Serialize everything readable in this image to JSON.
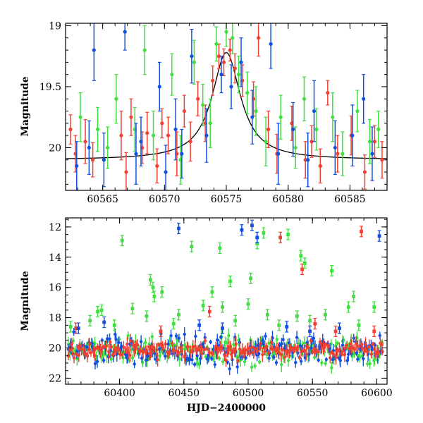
{
  "colors": {
    "red": "#f04030",
    "green": "#40e040",
    "blue": "#1050e0",
    "model": "#000000"
  },
  "chart_data": [
    {
      "type": "scatter",
      "panel": "top",
      "ylabel": "Magnitude",
      "xlabel": "",
      "xlim": [
        60562,
        60588
      ],
      "ylim": [
        20.35,
        18.98
      ],
      "y_inverted": true,
      "xticks": [
        60565,
        60570,
        60575,
        60580,
        60585
      ],
      "xtick_labels": [
        "60565",
        "60570",
        "60575",
        "60580",
        "60585"
      ],
      "yticks": [
        19,
        19.5,
        20
      ],
      "ytick_labels": [
        "19",
        "19.5",
        "20"
      ],
      "grid": false,
      "model_curve": {
        "type": "lorentzian-peak",
        "baseline": 20.1,
        "peak_x": 60575.0,
        "peak_y": 19.22,
        "half_width_days": 1.4,
        "color": "model"
      },
      "series": [
        {
          "color": "red",
          "points": [
            [
              60562.4,
              19.85,
              0.12
            ],
            [
              60562.8,
              20.05,
              0.15
            ],
            [
              60563.6,
              19.95,
              0.18
            ],
            [
              60564.2,
              20.1,
              0.14
            ],
            [
              60566.5,
              19.9,
              0.2
            ],
            [
              60566.9,
              20.2,
              0.16
            ],
            [
              60567.3,
              19.75,
              0.15
            ],
            [
              60568.2,
              20.0,
              0.13
            ],
            [
              60568.6,
              19.88,
              0.17
            ],
            [
              60569.4,
              20.15,
              0.14
            ],
            [
              60569.8,
              19.8,
              0.12
            ],
            [
              60570.3,
              19.9,
              0.15
            ],
            [
              60571.0,
              20.05,
              0.18
            ],
            [
              60571.6,
              19.7,
              0.13
            ],
            [
              60572.1,
              19.95,
              0.16
            ],
            [
              60572.7,
              19.6,
              0.14
            ],
            [
              60573.3,
              19.8,
              0.15
            ],
            [
              60573.9,
              19.45,
              0.12
            ],
            [
              60574.4,
              19.25,
              0.1
            ],
            [
              60574.8,
              19.3,
              0.11
            ],
            [
              60575.3,
              19.2,
              0.09
            ],
            [
              60575.7,
              19.35,
              0.12
            ],
            [
              60576.3,
              19.45,
              0.13
            ],
            [
              60577.2,
              19.6,
              0.14
            ],
            [
              60577.6,
              19.1,
              0.15
            ],
            [
              60578.4,
              19.85,
              0.15
            ],
            [
              60579.1,
              20.05,
              0.16
            ],
            [
              60580.3,
              19.8,
              0.14
            ],
            [
              60581.4,
              20.1,
              0.15
            ],
            [
              60581.9,
              19.95,
              0.13
            ],
            [
              60582.6,
              20.15,
              0.14
            ],
            [
              60583.2,
              19.55,
              0.1
            ],
            [
              60584.0,
              20.05,
              0.15
            ],
            [
              60585.1,
              19.9,
              0.16
            ],
            [
              60586.2,
              20.2,
              0.14
            ],
            [
              60587.0,
              19.95,
              0.13
            ],
            [
              60587.6,
              20.1,
              0.15
            ]
          ]
        },
        {
          "color": "green",
          "points": [
            [
              60563.2,
              19.75,
              0.2
            ],
            [
              60564.6,
              19.85,
              0.18
            ],
            [
              60565.4,
              20.0,
              0.17
            ],
            [
              60566.1,
              19.6,
              0.2
            ],
            [
              60567.6,
              19.85,
              0.18
            ],
            [
              60568.4,
              19.2,
              0.2
            ],
            [
              60569.1,
              19.9,
              0.2
            ],
            [
              60570.6,
              19.4,
              0.17
            ],
            [
              60571.3,
              20.1,
              0.2
            ],
            [
              60572.4,
              19.3,
              0.18
            ],
            [
              60573.1,
              19.65,
              0.17
            ],
            [
              60573.7,
              19.8,
              0.2
            ],
            [
              60574.2,
              19.15,
              0.14
            ],
            [
              60575.0,
              19.05,
              0.12
            ],
            [
              60575.5,
              19.1,
              0.13
            ],
            [
              60576.0,
              19.4,
              0.15
            ],
            [
              60576.7,
              19.55,
              0.17
            ],
            [
              60577.4,
              19.7,
              0.2
            ],
            [
              60578.2,
              19.95,
              0.2
            ],
            [
              60579.4,
              19.75,
              0.18
            ],
            [
              60580.6,
              20.0,
              0.17
            ],
            [
              60581.3,
              19.6,
              0.18
            ],
            [
              60582.3,
              19.85,
              0.17
            ],
            [
              60583.6,
              19.75,
              0.2
            ],
            [
              60584.4,
              20.05,
              0.18
            ],
            [
              60585.6,
              19.7,
              0.17
            ],
            [
              60586.6,
              19.95,
              0.18
            ],
            [
              60587.3,
              19.85,
              0.15
            ]
          ]
        },
        {
          "color": "blue",
          "points": [
            [
              60562.9,
              20.15,
              0.2
            ],
            [
              60563.9,
              20.0,
              0.22
            ],
            [
              60564.3,
              19.2,
              0.25
            ],
            [
              60565.1,
              20.1,
              0.22
            ],
            [
              60566.8,
              19.05,
              0.15
            ],
            [
              60567.7,
              20.05,
              0.25
            ],
            [
              60568.1,
              19.95,
              0.2
            ],
            [
              60569.6,
              19.5,
              0.2
            ],
            [
              60570.1,
              20.2,
              0.22
            ],
            [
              60570.9,
              19.85,
              0.25
            ],
            [
              60571.4,
              20.05,
              0.2
            ],
            [
              60572.2,
              19.25,
              0.22
            ],
            [
              60573.4,
              19.9,
              0.22
            ],
            [
              60574.6,
              19.4,
              0.15
            ],
            [
              60575.4,
              19.5,
              0.18
            ],
            [
              60576.2,
              19.3,
              0.2
            ],
            [
              60577.1,
              19.75,
              0.22
            ],
            [
              60578.6,
              19.15,
              0.2
            ],
            [
              60579.2,
              20.05,
              0.25
            ],
            [
              60580.4,
              19.85,
              0.22
            ],
            [
              60581.6,
              20.1,
              0.22
            ],
            [
              60582.1,
              19.7,
              0.25
            ],
            [
              60583.8,
              20.0,
              0.22
            ],
            [
              60585.2,
              19.9,
              0.25
            ],
            [
              60586.1,
              19.6,
              0.2
            ],
            [
              60586.8,
              20.05,
              0.22
            ]
          ]
        }
      ]
    },
    {
      "type": "scatter",
      "panel": "bottom",
      "ylabel": "Magnitude",
      "xlabel": "HJD−2400000",
      "xlim": [
        60358,
        60608
      ],
      "ylim": [
        22.4,
        11.4
      ],
      "y_inverted": true,
      "xticks": [
        60400,
        60450,
        60500,
        60550,
        60600
      ],
      "xtick_labels": [
        "60400",
        "60450",
        "60500",
        "60550",
        "60600"
      ],
      "yticks": [
        12,
        14,
        16,
        18,
        20,
        22
      ],
      "ytick_labels": [
        "12",
        "14",
        "16",
        "18",
        "20",
        "22"
      ],
      "grid": false,
      "baseline_bands": {
        "x_start": 60360,
        "x_end": 60605,
        "step_days": 1.2,
        "red": {
          "center": 20.1,
          "scatter": 0.45
        },
        "green": {
          "center": 20.2,
          "scatter": 0.7
        },
        "blue": {
          "center": 20.1,
          "scatter": 0.8
        }
      },
      "series": [
        {
          "color": "red",
          "points": [
            [
              60366,
              18.7
            ],
            [
              60432,
              18.9
            ],
            [
              60470,
              17.6
            ],
            [
              60525,
              12.7
            ],
            [
              60542,
              14.8
            ],
            [
              60552,
              18.4
            ],
            [
              60568,
              18.9
            ],
            [
              60588,
              12.3
            ],
            [
              60598,
              18.9
            ]
          ]
        },
        {
          "color": "green",
          "points": [
            [
              60362,
              18.6
            ],
            [
              60377,
              18.2
            ],
            [
              60383,
              17.6
            ],
            [
              60386,
              17.5
            ],
            [
              60396,
              18.5
            ],
            [
              60402,
              12.9
            ],
            [
              60410,
              17.4
            ],
            [
              60421,
              17.9
            ],
            [
              60424,
              15.5
            ],
            [
              60426,
              16.0
            ],
            [
              60427,
              16.6
            ],
            [
              60433,
              16.3
            ],
            [
              60442,
              18.4
            ],
            [
              60446,
              17.8
            ],
            [
              60456,
              13.3
            ],
            [
              60465,
              17.2
            ],
            [
              60472,
              16.3
            ],
            [
              60478,
              13.4
            ],
            [
              60480,
              17.3
            ],
            [
              60486,
              15.6
            ],
            [
              60490,
              18.2
            ],
            [
              60500,
              17.1
            ],
            [
              60502,
              15.4
            ],
            [
              60507,
              13.1
            ],
            [
              60512,
              12.4
            ],
            [
              60515,
              17.8
            ],
            [
              60524,
              18.5
            ],
            [
              60531,
              12.5
            ],
            [
              60538,
              17.9
            ],
            [
              60541,
              13.9
            ],
            [
              60544,
              14.4
            ],
            [
              60548,
              18.2
            ],
            [
              60560,
              17.8
            ],
            [
              60565,
              14.9
            ],
            [
              60578,
              17.3
            ],
            [
              60582,
              16.6
            ],
            [
              60586,
              18.5
            ],
            [
              60598,
              17.3
            ]
          ]
        },
        {
          "color": "blue",
          "points": [
            [
              60368,
              18.7
            ],
            [
              60388,
              18.3
            ],
            [
              60446,
              12.1
            ],
            [
              60462,
              18.5
            ],
            [
              60480,
              18.7
            ],
            [
              60495,
              12.2
            ],
            [
              60503,
              11.9
            ],
            [
              60507,
              12.7
            ],
            [
              60530,
              18.6
            ],
            [
              60548,
              18.9
            ],
            [
              60571,
              18.7
            ],
            [
              60602,
              12.6
            ]
          ]
        }
      ]
    }
  ]
}
